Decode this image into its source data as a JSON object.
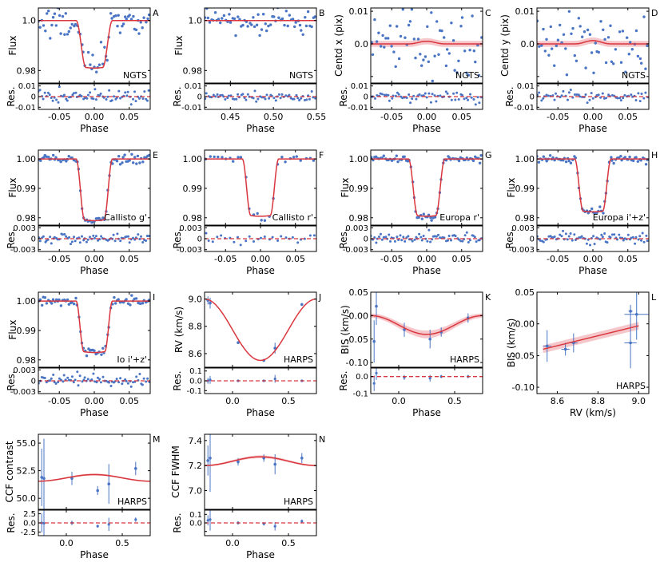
{
  "figure": {
    "colors": {
      "model": "#d9363e",
      "band": "#f4b9bd",
      "points": "#4a74c4",
      "axis": "#000000"
    },
    "shared": {
      "phase_label": "Phase",
      "res_label": "Res."
    }
  },
  "chart_data": [
    {
      "id": "A",
      "type": "scatter",
      "panel_letter": "A",
      "label": "NGTS",
      "model": "transit",
      "ylabel": "Flux",
      "xlim": [
        -0.08,
        0.08
      ],
      "ylim": [
        0.975,
        1.005
      ],
      "yticks": [
        0.98,
        1.0
      ],
      "ytick_labels": [
        "0.98",
        "1.0"
      ],
      "xticks": [
        -0.05,
        0.0,
        0.05
      ],
      "xtick_labels": [
        "-0.05",
        "0.00",
        "0.05"
      ],
      "depth": 0.019,
      "t14": 0.052,
      "ingress": 0.014,
      "noise": 0.0035,
      "npts": 70,
      "res_ylim": [
        -0.012,
        0.012
      ],
      "res_yticks": [
        -0.01,
        0,
        0.01
      ],
      "res_ytick_labels": [
        "-0.01",
        "0",
        "0.01"
      ],
      "res_noise": 0.0035
    },
    {
      "id": "B",
      "type": "scatter",
      "panel_letter": "B",
      "label": "NGTS",
      "model": "flat",
      "ylabel": "Flux",
      "xlim": [
        0.42,
        0.55
      ],
      "ylim": [
        0.975,
        1.005
      ],
      "yticks": [
        0.98,
        1.0
      ],
      "ytick_labels": [
        "0.98",
        "1.0"
      ],
      "xticks": [
        0.45,
        0.5,
        0.55
      ],
      "xtick_labels": [
        "0.45",
        "0.50",
        "0.55"
      ],
      "level": 1.0,
      "noise": 0.0025,
      "npts": 65,
      "res_ylim": [
        -0.012,
        0.012
      ],
      "res_yticks": [
        -0.01,
        0,
        0.01
      ],
      "res_ytick_labels": [
        "-0.01",
        "0",
        "0.01"
      ],
      "res_noise": 0.0025
    },
    {
      "id": "C",
      "type": "scatter",
      "panel_letter": "C",
      "label": "NGTS",
      "model": "bump",
      "ylabel": "Centᴅ x (pix)",
      "ylabel_text": "Centd x (pix)",
      "xlim": [
        -0.08,
        0.08
      ],
      "ylim": [
        -0.012,
        0.011
      ],
      "yticks": [
        -0.01,
        0.0,
        0.01
      ],
      "ytick_labels": [
        "",
        "0.0",
        "0.01"
      ],
      "xticks": [
        -0.05,
        0.0,
        0.05
      ],
      "xtick_labels": [
        "-0.05",
        "0.00",
        "0.05"
      ],
      "amp": 0.0008,
      "width": 0.05,
      "noise": 0.005,
      "npts": 60,
      "band": 0.0008,
      "res_ylim": [
        -0.012,
        0.012
      ],
      "res_yticks": [
        -0.01,
        0,
        0.01
      ],
      "res_ytick_labels": [
        "-0.01",
        "0",
        "0.01"
      ],
      "res_noise": 0.003
    },
    {
      "id": "D",
      "type": "scatter",
      "panel_letter": "D",
      "label": "NGTS",
      "model": "bump",
      "ylabel": "Centd y (pix)",
      "ylabel_text": "Centd y (pix)",
      "xlim": [
        -0.08,
        0.08
      ],
      "ylim": [
        -0.012,
        0.011
      ],
      "yticks": [
        -0.01,
        0.0,
        0.01
      ],
      "ytick_labels": [
        "",
        "0.0",
        "0.01"
      ],
      "xticks": [
        -0.05,
        0.0,
        0.05
      ],
      "xtick_labels": [
        "-0.05",
        "0.00",
        "0.05"
      ],
      "amp": 0.001,
      "width": 0.05,
      "noise": 0.005,
      "npts": 60,
      "band": 0.0008,
      "res_ylim": [
        -0.012,
        0.012
      ],
      "res_yticks": [
        -0.01,
        0,
        0.01
      ],
      "res_ytick_labels": [
        "-0.01",
        "0",
        "0.01"
      ],
      "res_noise": 0.003
    },
    {
      "id": "E",
      "type": "scatter",
      "panel_letter": "E",
      "label": "Callisto g'",
      "model": "transit",
      "ylabel": "Flux",
      "xlim": [
        -0.08,
        0.08
      ],
      "ylim": [
        0.9775,
        1.003
      ],
      "yticks": [
        0.98,
        0.99,
        1.0
      ],
      "ytick_labels": [
        "0.98",
        "0.99",
        "1.00"
      ],
      "xticks": [
        -0.05,
        0.0,
        0.05
      ],
      "xtick_labels": [
        "-0.05",
        "0.00",
        "0.05"
      ],
      "depth": 0.021,
      "t14": 0.052,
      "ingress": 0.012,
      "noise": 0.0008,
      "npts": 70,
      "res_ylim": [
        -0.0035,
        0.0035
      ],
      "res_yticks": [
        -0.003,
        0,
        0.003
      ],
      "res_ytick_labels": [
        "-0.003",
        "0",
        "0.003"
      ],
      "res_noise": 0.0009
    },
    {
      "id": "F",
      "type": "scatter",
      "panel_letter": "F",
      "label": "Callisto r'",
      "model": "transit",
      "ylabel": "",
      "xlim": [
        -0.08,
        0.08
      ],
      "ylim": [
        0.9775,
        1.003
      ],
      "yticks": [
        0.98,
        0.99,
        1.0
      ],
      "ytick_labels": [
        "0.98",
        "0.99",
        "1.00"
      ],
      "xticks": [
        -0.05,
        0.0,
        0.05
      ],
      "xtick_labels": [
        "-0.05",
        "0.00",
        "0.05"
      ],
      "depth": 0.0195,
      "t14": 0.052,
      "ingress": 0.012,
      "noise": 0.0006,
      "npts": 28,
      "res_ylim": [
        -0.0035,
        0.0035
      ],
      "res_yticks": [
        -0.003,
        0,
        0.003
      ],
      "res_ytick_labels": [
        "-0.003",
        "0",
        "0.003"
      ],
      "res_noise": 0.0009
    },
    {
      "id": "G",
      "type": "scatter",
      "panel_letter": "G",
      "label": "Europa r'",
      "model": "transit",
      "ylabel": "Flux",
      "xlim": [
        -0.08,
        0.08
      ],
      "ylim": [
        0.9775,
        1.003
      ],
      "yticks": [
        0.98,
        0.99,
        1.0
      ],
      "ytick_labels": [
        "0.98",
        "0.99",
        "1.00"
      ],
      "xticks": [
        -0.05,
        0.0,
        0.05
      ],
      "xtick_labels": [
        "-0.05",
        "0.00",
        "0.05"
      ],
      "depth": 0.0195,
      "t14": 0.052,
      "ingress": 0.013,
      "noise": 0.0006,
      "npts": 70,
      "res_ylim": [
        -0.0035,
        0.0035
      ],
      "res_yticks": [
        -0.003,
        0,
        0.003
      ],
      "res_ytick_labels": [
        "-0.003",
        "0",
        "0.003"
      ],
      "res_noise": 0.0009
    },
    {
      "id": "H",
      "type": "scatter",
      "panel_letter": "H",
      "label": "Europa i'+z'",
      "model": "transit",
      "ylabel": "Flux",
      "xlim": [
        -0.08,
        0.08
      ],
      "ylim": [
        0.9775,
        1.003
      ],
      "yticks": [
        0.98,
        0.99,
        1.0
      ],
      "ytick_labels": [
        "0.98",
        "0.99",
        "1.00"
      ],
      "xticks": [
        -0.05,
        0.0,
        0.05
      ],
      "xtick_labels": [
        "-0.05",
        "0.00",
        "0.05"
      ],
      "depth": 0.018,
      "t14": 0.052,
      "ingress": 0.012,
      "noise": 0.0006,
      "npts": 70,
      "res_ylim": [
        -0.0035,
        0.0035
      ],
      "res_yticks": [
        -0.003,
        0,
        0.003
      ],
      "res_ytick_labels": [
        "-0.003",
        "0",
        "0.003"
      ],
      "res_noise": 0.0009
    },
    {
      "id": "I",
      "type": "scatter",
      "panel_letter": "I",
      "label": "Io i'+z'",
      "model": "transit",
      "ylabel": "Flux",
      "xlim": [
        -0.08,
        0.08
      ],
      "ylim": [
        0.9775,
        1.003
      ],
      "yticks": [
        0.98,
        0.99,
        1.0
      ],
      "ytick_labels": [
        "0.98",
        "0.99",
        "1.00"
      ],
      "xticks": [
        -0.05,
        0.0,
        0.05
      ],
      "xtick_labels": [
        "-0.05",
        "0.00",
        "0.05"
      ],
      "depth": 0.0175,
      "t14": 0.052,
      "ingress": 0.011,
      "noise": 0.0007,
      "npts": 70,
      "res_ylim": [
        -0.0035,
        0.0035
      ],
      "res_yticks": [
        -0.003,
        0,
        0.003
      ],
      "res_ytick_labels": [
        "-0.003",
        "0",
        "0.003"
      ],
      "res_noise": 0.0009
    },
    {
      "id": "J",
      "type": "scatter",
      "panel_letter": "J",
      "label": "HARPS",
      "model": "sine",
      "ylabel": "RV (km/s)",
      "xlim": [
        -0.25,
        0.75
      ],
      "ylim": [
        8.5,
        9.05
      ],
      "yticks": [
        8.6,
        8.8,
        9.0
      ],
      "ytick_labels": [
        "8.6",
        "8.8",
        "9.0"
      ],
      "xticks": [
        0.0,
        0.5
      ],
      "xtick_labels": [
        "0.0",
        "0.5"
      ],
      "offset": 8.775,
      "amp": 0.225,
      "phase_min": 0.25,
      "band": 0.0,
      "points": [
        {
          "x": -0.22,
          "y": 8.99,
          "err": 0.03
        },
        {
          "x": -0.2,
          "y": 8.97,
          "err": 0.04
        },
        {
          "x": 0.05,
          "y": 8.68,
          "err": 0.01
        },
        {
          "x": 0.28,
          "y": 8.55,
          "err": 0.01
        },
        {
          "x": 0.38,
          "y": 8.64,
          "err": 0.04
        },
        {
          "x": 0.62,
          "y": 8.96,
          "err": 0.01
        }
      ],
      "res_ylim": [
        -0.13,
        0.13
      ],
      "res_yticks": [
        -0.1,
        0,
        0.1
      ],
      "res_ytick_labels": [
        "-0.1",
        "0.0",
        "0.1"
      ],
      "res_points": [
        {
          "x": -0.22,
          "y": 0.0,
          "err": 0.03
        },
        {
          "x": -0.2,
          "y": 0.01,
          "err": 0.04
        },
        {
          "x": 0.05,
          "y": 0.0,
          "err": 0.01
        },
        {
          "x": 0.28,
          "y": 0.0,
          "err": 0.01
        },
        {
          "x": 0.38,
          "y": 0.02,
          "err": 0.04
        },
        {
          "x": 0.62,
          "y": 0.0,
          "err": 0.01
        }
      ]
    },
    {
      "id": "K",
      "type": "scatter",
      "panel_letter": "K",
      "label": "HARPS",
      "model": "sine",
      "ylabel": "BIS (km/s)",
      "xlim": [
        -0.25,
        0.75
      ],
      "ylim": [
        -0.11,
        0.05
      ],
      "yticks": [
        -0.1,
        -0.05,
        0.0,
        0.05
      ],
      "ytick_labels": [
        "-0.10",
        "-0.05",
        "0.00",
        "0.05"
      ],
      "xticks": [
        0.0,
        0.5
      ],
      "xtick_labels": [
        "0.0",
        "0.5"
      ],
      "offset": -0.02,
      "amp": 0.02,
      "phase_min": 0.25,
      "band": 0.007,
      "points": [
        {
          "x": -0.22,
          "y": -0.055,
          "err": 0.045
        },
        {
          "x": -0.2,
          "y": 0.02,
          "err": 0.04
        },
        {
          "x": 0.05,
          "y": -0.03,
          "err": 0.015
        },
        {
          "x": 0.28,
          "y": -0.05,
          "err": 0.02
        },
        {
          "x": 0.38,
          "y": -0.035,
          "err": 0.01
        },
        {
          "x": 0.62,
          "y": -0.005,
          "err": 0.01
        }
      ],
      "res_ylim": [
        -0.1,
        0.05
      ],
      "res_yticks": [
        -0.1,
        0,
        0.0
      ],
      "res_ytick_labels": [
        "-0.1",
        "0.0",
        ""
      ],
      "res_points": [
        {
          "x": -0.22,
          "y": -0.04,
          "err": 0.045
        },
        {
          "x": -0.2,
          "y": 0.02,
          "err": 0.04
        },
        {
          "x": 0.05,
          "y": -0.005,
          "err": 0.015
        },
        {
          "x": 0.28,
          "y": -0.01,
          "err": 0.02
        },
        {
          "x": 0.38,
          "y": 0.0,
          "err": 0.01
        },
        {
          "x": 0.62,
          "y": 0.0,
          "err": 0.01
        }
      ]
    },
    {
      "id": "L",
      "type": "scatter",
      "panel_letter": "L",
      "label": "HARPS",
      "model": "linear",
      "ylabel": "BIS (km/s)",
      "xlabel": "RV (km/s)",
      "xlim": [
        8.5,
        9.05
      ],
      "ylim": [
        -0.11,
        0.05
      ],
      "yticks": [
        -0.1,
        -0.05,
        0.0,
        0.05
      ],
      "ytick_labels": [
        "-0.10",
        "-0.05",
        "0.00",
        "0.05"
      ],
      "xticks": [
        8.6,
        8.8,
        9.0
      ],
      "xtick_labels": [
        "8.6",
        "8.8",
        "9.0"
      ],
      "line": [
        {
          "x": 8.53,
          "y": -0.04
        },
        {
          "x": 9.0,
          "y": -0.003
        }
      ],
      "band": 0.006,
      "points": [
        {
          "x": 8.55,
          "y": -0.035,
          "xerr": 0.02,
          "yerr": 0.025
        },
        {
          "x": 8.64,
          "y": -0.04,
          "xerr": 0.02,
          "yerr": 0.01
        },
        {
          "x": 8.68,
          "y": -0.03,
          "xerr": 0.02,
          "yerr": 0.015
        },
        {
          "x": 8.96,
          "y": -0.03,
          "xerr": 0.03,
          "yerr": 0.04
        },
        {
          "x": 8.99,
          "y": 0.015,
          "xerr": 0.06,
          "yerr": 0.04
        },
        {
          "x": 8.96,
          "y": 0.02,
          "xerr": 0.01,
          "yerr": 0.01
        }
      ]
    },
    {
      "id": "M",
      "type": "scatter",
      "panel_letter": "M",
      "label": "HARPS",
      "model": "sine",
      "ylabel": "CCF contrast",
      "xlim": [
        -0.25,
        0.75
      ],
      "ylim": [
        49.0,
        55.8
      ],
      "yticks": [
        50.0,
        52.5,
        55.0
      ],
      "ytick_labels": [
        "50.0",
        "52.5",
        "55.0"
      ],
      "xticks": [
        0.0,
        0.5
      ],
      "xtick_labels": [
        "0.0",
        "0.5"
      ],
      "offset": 51.85,
      "amp": -0.3,
      "phase_min": 0.25,
      "band": 0.08,
      "points": [
        {
          "x": -0.22,
          "y": 51.9,
          "err": 2.6
        },
        {
          "x": -0.2,
          "y": 51.8,
          "err": 3.6
        },
        {
          "x": 0.05,
          "y": 51.8,
          "err": 0.6
        },
        {
          "x": 0.28,
          "y": 50.7,
          "err": 0.4
        },
        {
          "x": 0.38,
          "y": 51.3,
          "err": 1.8
        },
        {
          "x": 0.62,
          "y": 52.7,
          "err": 0.6
        }
      ],
      "res_ylim": [
        -3.5,
        3.5
      ],
      "res_yticks": [
        -2.5,
        0,
        2.5
      ],
      "res_ytick_labels": [
        "-2.5",
        "0.0",
        "2.5"
      ],
      "res_points": [
        {
          "x": -0.22,
          "y": 0.0,
          "err": 2.6
        },
        {
          "x": -0.2,
          "y": -0.1,
          "err": 3.6
        },
        {
          "x": 0.05,
          "y": 0.0,
          "err": 0.6
        },
        {
          "x": 0.28,
          "y": -0.9,
          "err": 0.4
        },
        {
          "x": 0.38,
          "y": -0.4,
          "err": 1.8
        },
        {
          "x": 0.62,
          "y": 0.9,
          "err": 0.6
        }
      ]
    },
    {
      "id": "N",
      "type": "scatter",
      "panel_letter": "N",
      "label": "HARPS",
      "model": "sine",
      "ylabel": "CCF FWHM",
      "xlim": [
        -0.25,
        0.75
      ],
      "ylim": [
        6.85,
        7.45
      ],
      "yticks": [
        7.0,
        7.2,
        7.4
      ],
      "ytick_labels": [
        "7.0",
        "7.2",
        "7.4"
      ],
      "xticks": [
        0.0,
        0.5
      ],
      "xtick_labels": [
        "0.0",
        "0.5"
      ],
      "offset": 7.235,
      "amp": -0.035,
      "phase_min": 0.25,
      "band": 0.01,
      "points": [
        {
          "x": -0.22,
          "y": 7.24,
          "err": 0.12
        },
        {
          "x": -0.2,
          "y": 7.26,
          "err": 0.27
        },
        {
          "x": 0.05,
          "y": 7.23,
          "err": 0.03
        },
        {
          "x": 0.28,
          "y": 7.26,
          "err": 0.03
        },
        {
          "x": 0.38,
          "y": 7.21,
          "err": 0.08
        },
        {
          "x": 0.62,
          "y": 7.26,
          "err": 0.04
        }
      ],
      "res_ylim": [
        -0.15,
        0.15
      ],
      "res_yticks": [
        -0.1,
        0.0,
        0.1
      ],
      "res_ytick_labels": [
        "",
        "0.0",
        "0.1"
      ],
      "res_points": [
        {
          "x": -0.22,
          "y": 0.03,
          "err": 0.06
        },
        {
          "x": -0.2,
          "y": 0.04,
          "err": 0.13
        },
        {
          "x": 0.05,
          "y": 0.0,
          "err": 0.02
        },
        {
          "x": 0.28,
          "y": -0.01,
          "err": 0.02
        },
        {
          "x": 0.38,
          "y": -0.04,
          "err": 0.05
        },
        {
          "x": 0.62,
          "y": 0.02,
          "err": 0.02
        }
      ]
    }
  ]
}
